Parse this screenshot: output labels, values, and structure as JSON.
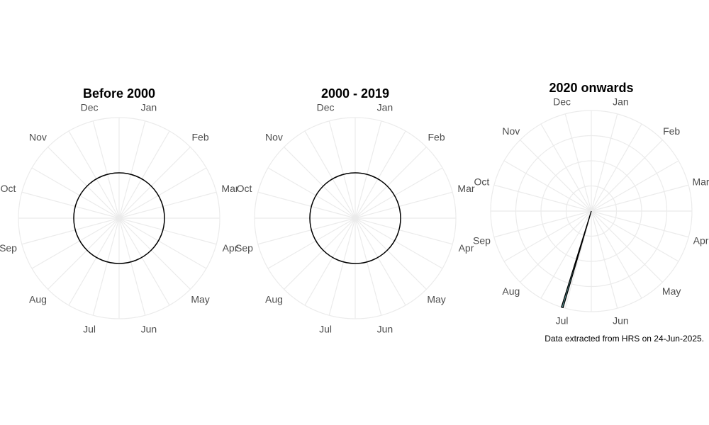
{
  "chart_data": [
    {
      "type": "rose",
      "title": "Before 2000",
      "months": [
        "Jan",
        "Feb",
        "Mar",
        "Apr",
        "May",
        "Jun",
        "Jul",
        "Aug",
        "Sep",
        "Oct",
        "Nov",
        "Dec"
      ],
      "values": [
        0,
        0,
        0,
        0,
        0,
        0,
        0,
        0,
        0,
        0,
        0,
        0
      ],
      "radial_grid": false,
      "outline_circle": true
    },
    {
      "type": "rose",
      "title": "2000 - 2019",
      "months": [
        "Jan",
        "Feb",
        "Mar",
        "Apr",
        "May",
        "Jun",
        "Jul",
        "Aug",
        "Sep",
        "Oct",
        "Nov",
        "Dec"
      ],
      "values": [
        0,
        0,
        0,
        0,
        0,
        0,
        0,
        0,
        0,
        0,
        0,
        0
      ],
      "radial_grid": false,
      "outline_circle": true
    },
    {
      "type": "rose",
      "title": "2020 onwards",
      "months": [
        "Jan",
        "Feb",
        "Mar",
        "Apr",
        "May",
        "Jun",
        "Jul",
        "Aug",
        "Sep",
        "Oct",
        "Nov",
        "Dec"
      ],
      "day_values": [
        {
          "date": "2025-07-19",
          "value": 1
        }
      ],
      "radial_grid": true,
      "outline_circle": false,
      "bar_color": "#5f9ea0"
    }
  ],
  "caption": "Data extracted from HRS on 24-Jun-2025.",
  "colors": {
    "grid": "#ebebeb",
    "label": "#4d4d4d",
    "bar_fill": "#5f9ea0",
    "bar_stroke": "#000000"
  }
}
